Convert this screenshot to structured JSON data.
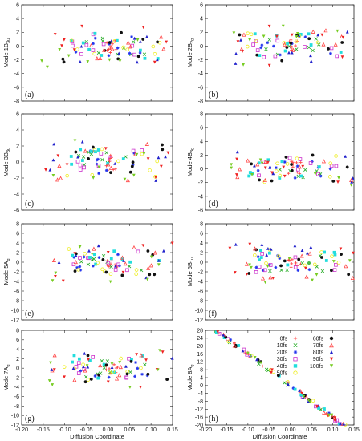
{
  "series_styles": [
    {
      "name": "0fs",
      "color": "#ff3b3b",
      "marker": "plus"
    },
    {
      "name": "10fs",
      "color": "#22aa22",
      "marker": "cross"
    },
    {
      "name": "20fs",
      "color": "#2233ee",
      "marker": "star"
    },
    {
      "name": "30fs",
      "color": "#cc33cc",
      "marker": "square"
    },
    {
      "name": "40fs",
      "color": "#22dddd",
      "marker": "filled-square"
    },
    {
      "name": "50fs",
      "color": "#eeee22",
      "marker": "circle"
    },
    {
      "name": "60fs",
      "color": "#111111",
      "marker": "filled-circle"
    },
    {
      "name": "70fs",
      "color": "#ff4444",
      "marker": "triangle"
    },
    {
      "name": "80fs",
      "color": "#2222cc",
      "marker": "filled-triangle"
    },
    {
      "name": "90fs",
      "color": "#ee2222",
      "marker": "filled-triangle-down"
    },
    {
      "name": "100fs",
      "color": "#77cc22",
      "marker": "filled-triangle-down"
    }
  ],
  "chart_data": [
    {
      "type": "scatter",
      "panel": "(a)",
      "ylabel_main": "Mode 1B",
      "ylabel_sub": "3u",
      "xlim": [
        -0.2,
        0.15
      ],
      "ylim": [
        -8,
        6
      ],
      "yticks": [
        -8,
        -6,
        -4,
        -2,
        0,
        2,
        4,
        6
      ],
      "xticks": [],
      "xlabel": "",
      "spread": 3.2,
      "seed": 11
    },
    {
      "type": "scatter",
      "panel": "(b)",
      "ylabel_main": "Mode 2B",
      "ylabel_sub": "2g",
      "xlim": [
        -0.2,
        0.15
      ],
      "ylim": [
        -8,
        6
      ],
      "yticks": [
        -8,
        -6,
        -4,
        -2,
        0,
        2,
        4,
        6
      ],
      "xticks": [],
      "xlabel": "",
      "spread": 3.2,
      "seed": 23
    },
    {
      "type": "scatter",
      "panel": "(c)",
      "ylabel_main": "Mode 3B",
      "ylabel_sub": "3u",
      "xlim": [
        -0.2,
        0.15
      ],
      "ylim": [
        -6,
        6
      ],
      "yticks": [
        -6,
        -4,
        -2,
        0,
        2,
        4,
        6
      ],
      "xticks": [],
      "xlabel": "",
      "spread": 3.0,
      "seed": 37
    },
    {
      "type": "scatter",
      "panel": "(d)",
      "ylabel_main": "Mode 4B",
      "ylabel_sub": "3g",
      "xlim": [
        -0.2,
        0.15
      ],
      "ylim": [
        -6,
        8
      ],
      "yticks": [
        -6,
        -4,
        -2,
        0,
        2,
        4,
        6,
        8
      ],
      "xticks": [],
      "xlabel": "",
      "spread": 3.0,
      "seed": 41
    },
    {
      "type": "scatter",
      "panel": "(e)",
      "ylabel_main": "Mode 5A",
      "ylabel_sub": "g",
      "xlim": [
        -0.2,
        0.15
      ],
      "ylim": [
        -12,
        8
      ],
      "yticks": [
        -12,
        -10,
        -8,
        -6,
        -4,
        -2,
        0,
        2,
        4,
        6,
        8
      ],
      "xticks": [],
      "xlabel": "",
      "spread": 4.5,
      "seed": 53
    },
    {
      "type": "scatter",
      "panel": "(f)",
      "ylabel_main": "Mode 6B",
      "ylabel_sub": "1u",
      "xlim": [
        -0.2,
        0.15
      ],
      "ylim": [
        -12,
        8
      ],
      "yticks": [
        -12,
        -10,
        -8,
        -6,
        -4,
        -2,
        0,
        2,
        4,
        6,
        8
      ],
      "xticks": [],
      "xlabel": "",
      "spread": 4.5,
      "seed": 67
    },
    {
      "type": "scatter",
      "panel": "(g)",
      "ylabel_main": "Mode 7A",
      "ylabel_sub": "g",
      "xlim": [
        -0.2,
        0.15
      ],
      "ylim": [
        -12,
        8
      ],
      "yticks": [
        -12,
        -10,
        -8,
        -6,
        -4,
        -2,
        0,
        2,
        4,
        6,
        8
      ],
      "xticks": [
        -0.2,
        -0.15,
        -0.1,
        -0.05,
        0.0,
        0.05,
        0.1,
        0.15
      ],
      "xlabel": "Diffusion Coordinate",
      "spread": 4.5,
      "seed": 79
    },
    {
      "type": "scatter",
      "panel": "(h)",
      "ylabel_main": "Mode 8A",
      "ylabel_sub": "g",
      "xlim": [
        -0.2,
        0.15
      ],
      "ylim": [
        -20,
        28
      ],
      "yticks": [
        -20,
        -16,
        -12,
        -8,
        -4,
        0,
        4,
        8,
        12,
        16,
        20,
        24,
        28
      ],
      "xticks": [
        -0.2,
        -0.15,
        -0.1,
        -0.05,
        0.0,
        0.05,
        0.1,
        0.15
      ],
      "xlabel": "Diffusion Coordinate",
      "linear": true,
      "slope": -160,
      "seed": 97,
      "legend_position": "top-right"
    }
  ]
}
